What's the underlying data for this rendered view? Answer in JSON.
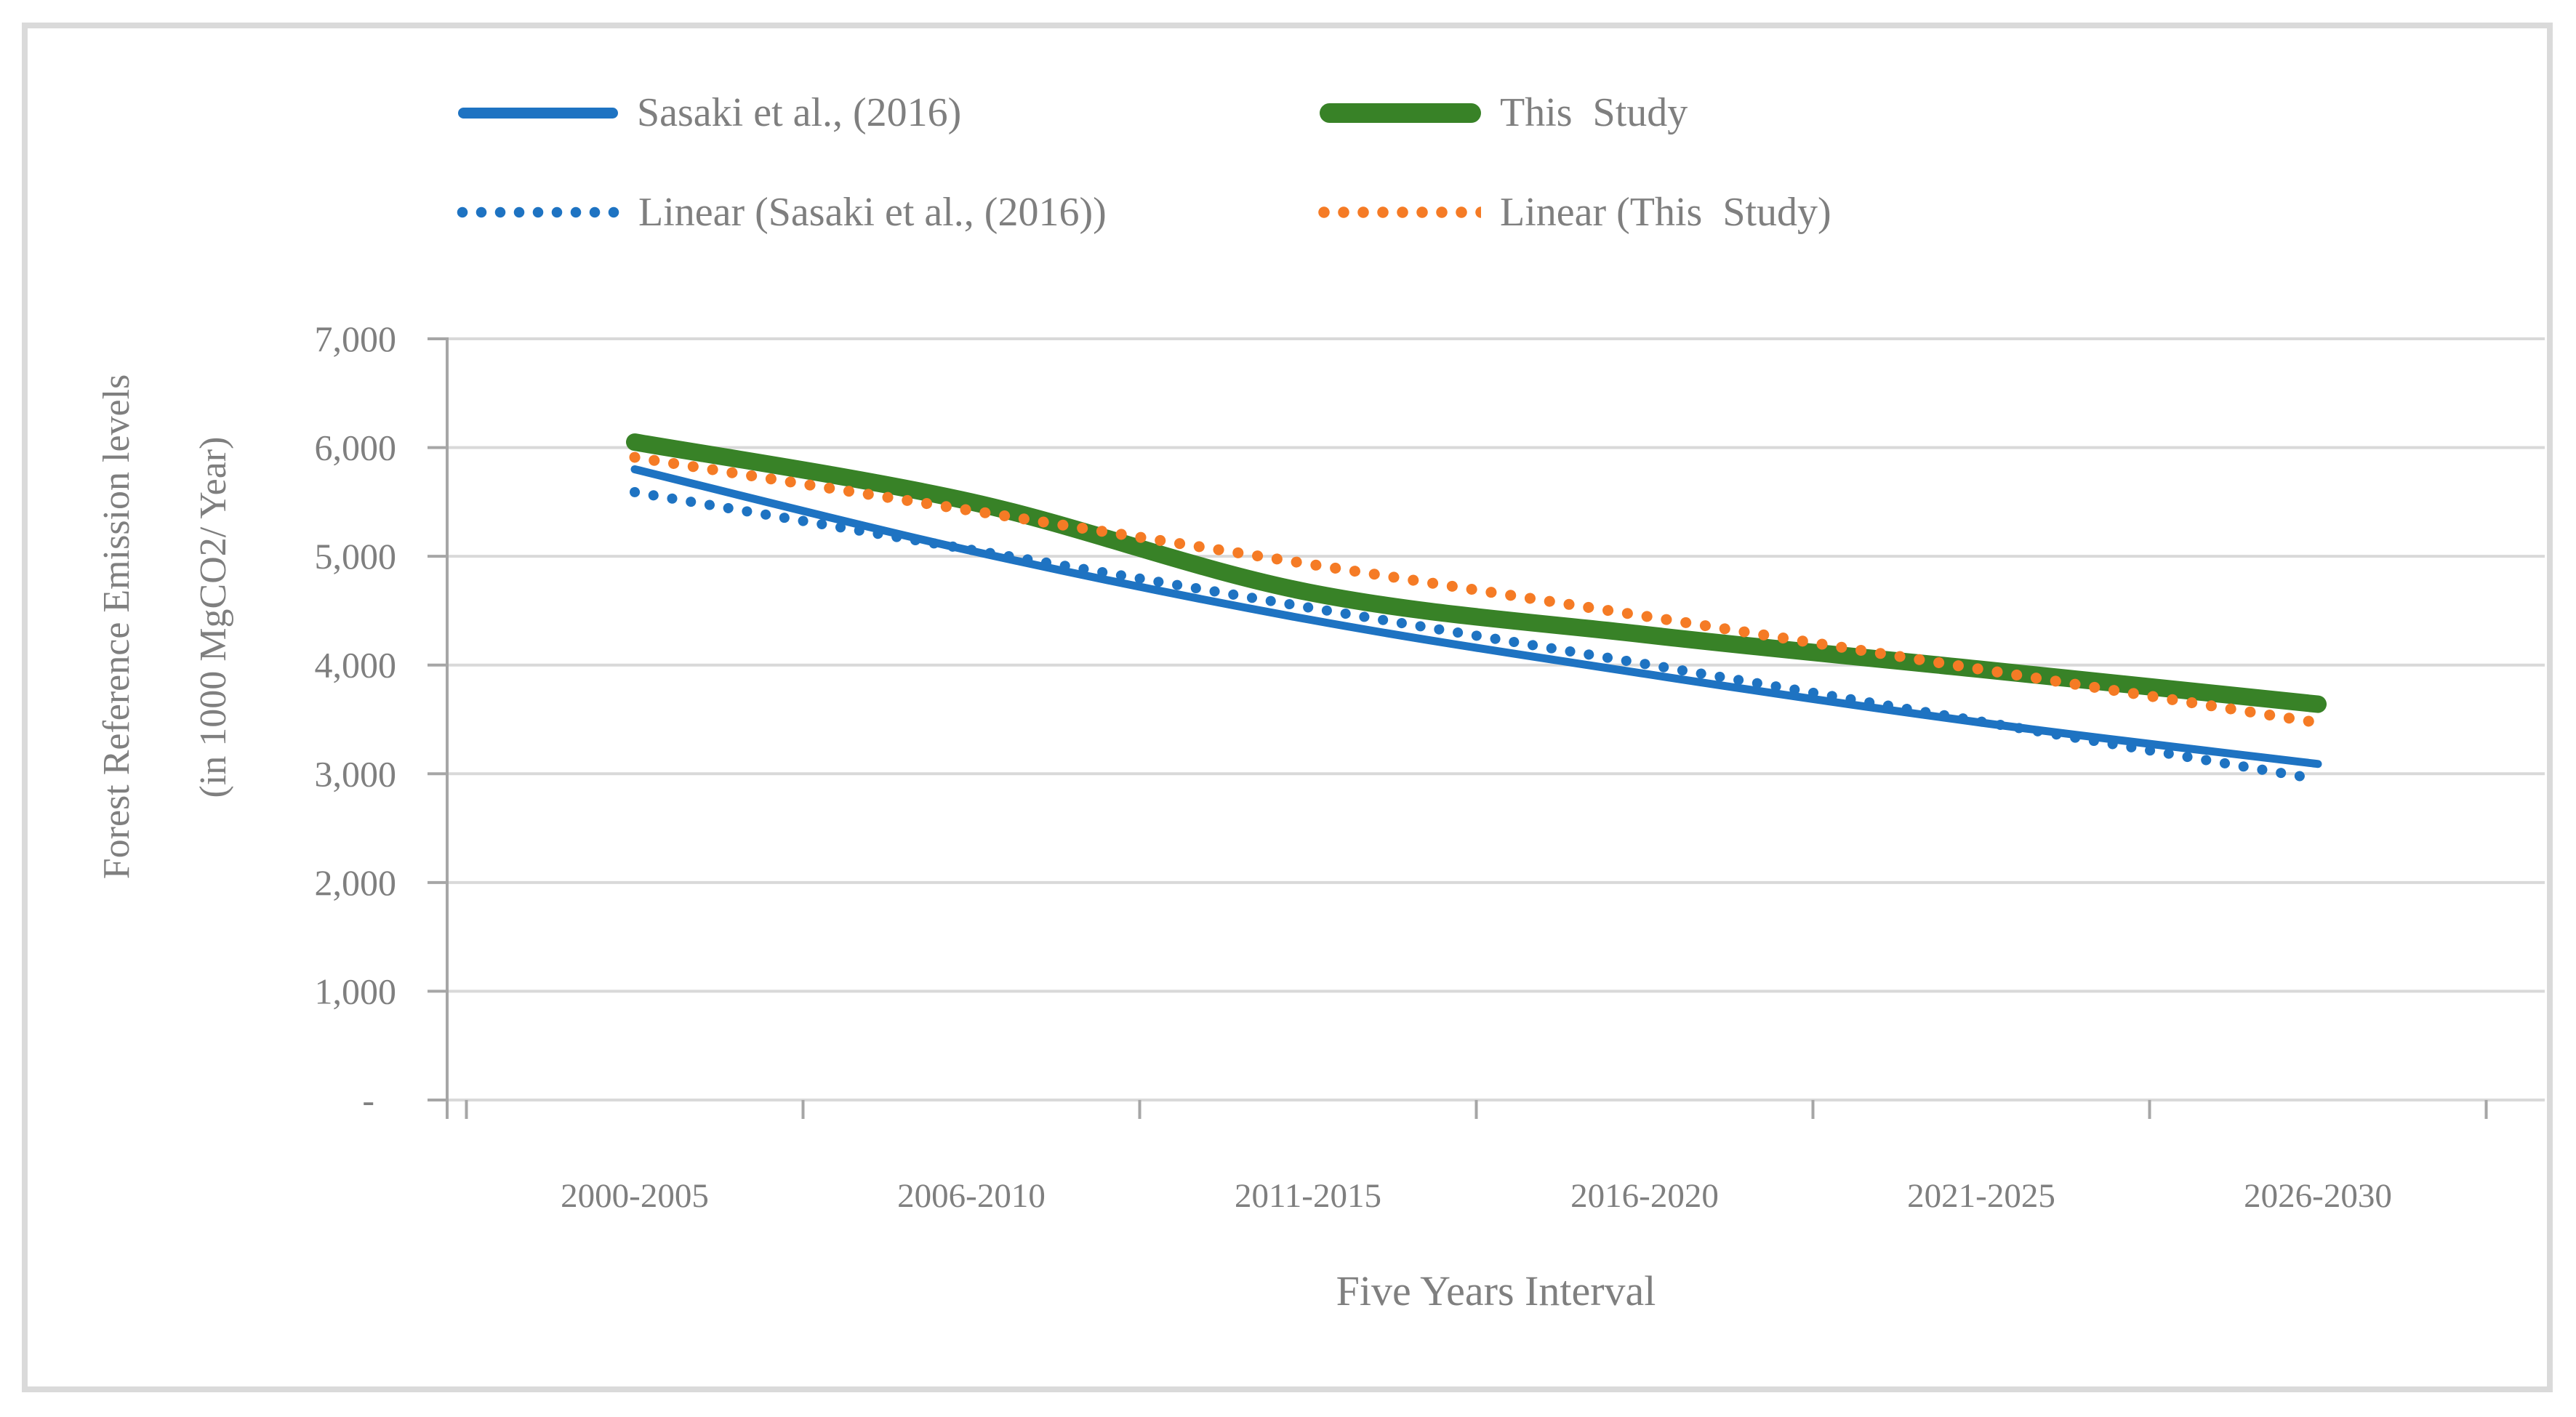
{
  "figure": {
    "y_axis_title_line1": "Forest Reference Emission levels",
    "y_axis_title_line2": "(in 1000 MgCO2/ Year)",
    "x_axis_title": "Five Years Interval"
  },
  "chart_data": {
    "type": "line",
    "title": "",
    "xlabel": "Five Years Interval",
    "ylabel": "Forest Reference Emission levels (in 1000 MgCO2/ Year)",
    "categories": [
      "2000-2005",
      "2006-2010",
      "2011-2015",
      "2016-2020",
      "2021-2025",
      "2026-2030"
    ],
    "series": [
      {
        "name": "Sasaki et al., (2016)",
        "color": "#1e73c2",
        "style": "solid",
        "stroke_width": 11,
        "smooth": true,
        "values": [
          5800,
          5050,
          4420,
          3920,
          3470,
          3090
        ]
      },
      {
        "name": "This  Study",
        "color": "#388227",
        "style": "solid",
        "stroke_width": 24,
        "smooth": true,
        "values": [
          6050,
          5500,
          4670,
          4280,
          3960,
          3640
        ]
      },
      {
        "name": "Linear (Sasaki et al., (2016))",
        "color": "#1e73c2",
        "style": "dotted",
        "stroke_width": 14,
        "smooth": false,
        "values": [
          5590,
          5060,
          4530,
          4010,
          3480,
          2950
        ]
      },
      {
        "name": "Linear (This  Study)",
        "color": "#f57b25",
        "style": "dotted",
        "stroke_width": 15,
        "smooth": false,
        "values": [
          5910,
          5420,
          4930,
          4450,
          3960,
          3470
        ]
      }
    ],
    "ylim": [
      0,
      7000
    ],
    "y_ticks": [
      {
        "label": "7,000",
        "value": 7000
      },
      {
        "label": "6,000",
        "value": 6000
      },
      {
        "label": "5,000",
        "value": 5000
      },
      {
        "label": "4,000",
        "value": 4000
      },
      {
        "label": "3,000",
        "value": 3000
      },
      {
        "label": "2,000",
        "value": 2000
      },
      {
        "label": "1,000",
        "value": 1000
      },
      {
        "label": "-",
        "value": 0
      }
    ],
    "grid": true,
    "legend_position": "top",
    "colors": {
      "gridline": "#d9d9d9",
      "axis": "#a6a6a6",
      "text": "#7f7f7f",
      "border": "#dadada"
    }
  }
}
